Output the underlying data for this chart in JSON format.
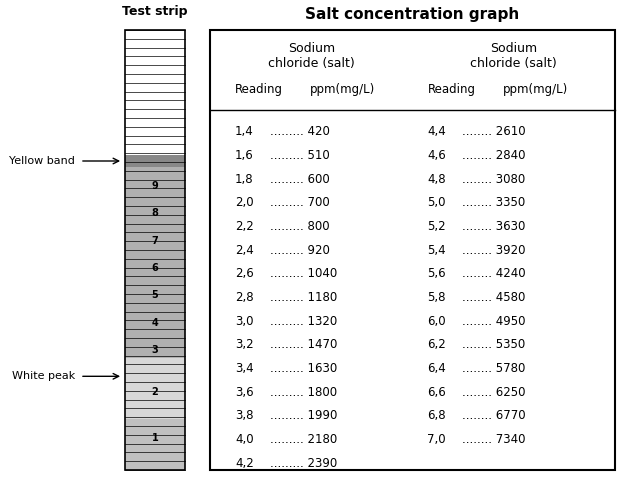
{
  "title": "Salt concentration graph",
  "strip_title": "Test strip",
  "col1_header1": "Sodium",
  "col1_header2": "chloride (salt)",
  "col1_header3": "Reading",
  "col1_header4": "ppm(mg/L)",
  "col2_header1": "Sodium",
  "col2_header2": "chloride (salt)",
  "col2_header3": "Reading",
  "col2_header4": "ppm(mg/L)",
  "table_data_left": [
    [
      "1,4",
      "420"
    ],
    [
      "1,6",
      "510"
    ],
    [
      "1,8",
      "600"
    ],
    [
      "2,0",
      "700"
    ],
    [
      "2,2",
      "800"
    ],
    [
      "2,4",
      "920"
    ],
    [
      "2,6",
      "1040"
    ],
    [
      "2,8",
      "1180"
    ],
    [
      "3,0",
      "1320"
    ],
    [
      "3,2",
      "1470"
    ],
    [
      "3,4",
      "1630"
    ],
    [
      "3,6",
      "1800"
    ],
    [
      "3,8",
      "1990"
    ],
    [
      "4,0",
      "2180"
    ],
    [
      "4,2",
      "2390"
    ]
  ],
  "table_data_right": [
    [
      "4,4",
      "2610"
    ],
    [
      "4,6",
      "2840"
    ],
    [
      "4,8",
      "3080"
    ],
    [
      "5,0",
      "3350"
    ],
    [
      "5,2",
      "3630"
    ],
    [
      "5,4",
      "3920"
    ],
    [
      "5,6",
      "4240"
    ],
    [
      "5,8",
      "4580"
    ],
    [
      "6,0",
      "4950"
    ],
    [
      "6,2",
      "5350"
    ],
    [
      "6,4",
      "5780"
    ],
    [
      "6,6",
      "6250"
    ],
    [
      "6,8",
      "6770"
    ],
    [
      "7,0",
      "7340"
    ]
  ],
  "yellow_band_label": "Yellow band",
  "white_peak_label": "White peak",
  "gray_band_color": "#b0b0b0",
  "dark_band_color": "#888888",
  "light_gray_color": "#d8d8d8",
  "bottom_gray_color": "#c0c0c0"
}
